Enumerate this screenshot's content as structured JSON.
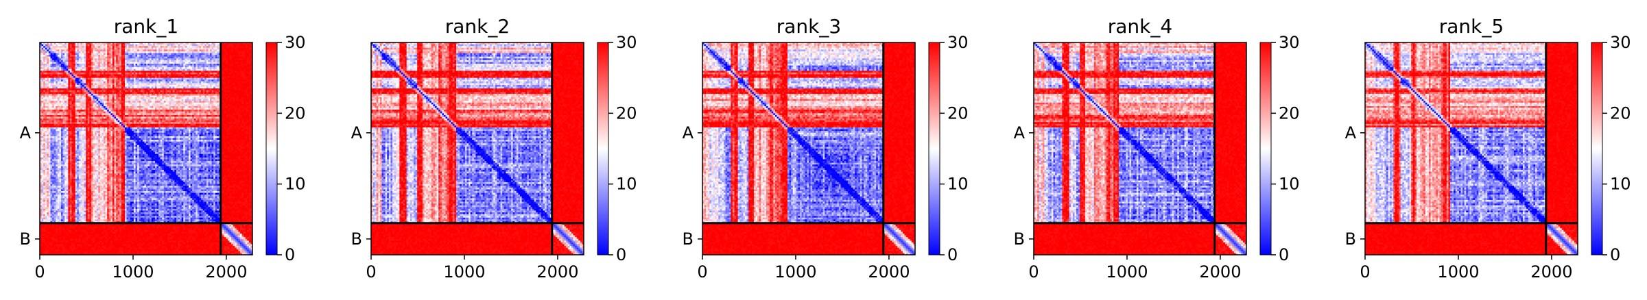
{
  "chart_data": {
    "type": "heatmap",
    "panels": [
      {
        "title": "rank_1"
      },
      {
        "title": "rank_2"
      },
      {
        "title": "rank_3"
      },
      {
        "title": "rank_4"
      },
      {
        "title": "rank_5"
      }
    ],
    "x_ticks": [
      "0",
      "1000",
      "2000"
    ],
    "x_tick_values": [
      0,
      1000,
      2000
    ],
    "xlim": [
      0,
      2280
    ],
    "ylim": [
      0,
      2280
    ],
    "chain_labels": [
      "A",
      "B"
    ],
    "chain_boundary": 1940,
    "chain_centers": [
      970,
      2110
    ],
    "colorbar": {
      "ticks": [
        "0",
        "10",
        "20",
        "30"
      ],
      "tick_values": [
        0,
        10,
        20,
        30
      ],
      "range": [
        0,
        30
      ],
      "colors": [
        "#0000ff",
        "#ffffff",
        "#ff0000"
      ]
    },
    "grid": false
  }
}
